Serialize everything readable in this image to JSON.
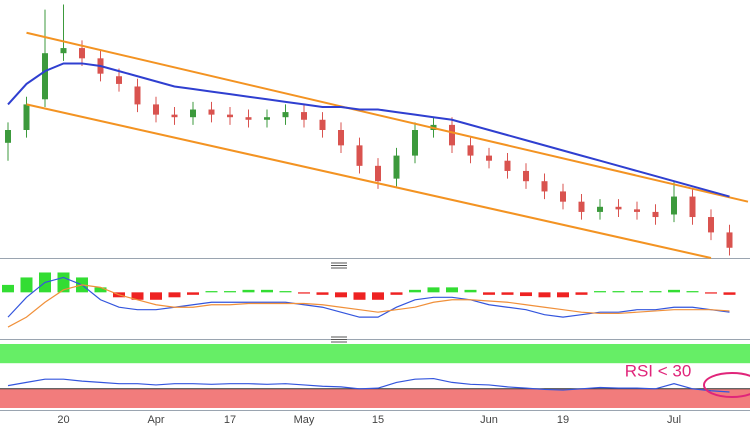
{
  "chart_data": [
    {
      "type": "candlestick",
      "categories": [
        null,
        null,
        null,
        "20",
        null,
        null,
        null,
        null,
        "Apr",
        null,
        null,
        null,
        "17",
        null,
        null,
        null,
        "May",
        null,
        null,
        null,
        "15",
        null,
        null,
        null,
        null,
        null,
        "Jun",
        null,
        null,
        null,
        "19",
        null,
        null,
        null,
        null,
        null,
        "Jul",
        null,
        null,
        null
      ],
      "open": [
        45,
        50,
        62,
        80,
        82,
        78,
        71,
        67,
        60,
        56,
        55,
        58,
        56,
        55,
        54,
        55,
        57,
        54,
        50,
        44,
        36,
        31,
        40,
        50,
        52,
        44,
        40,
        38,
        34,
        30,
        26,
        22,
        18,
        20,
        19,
        18,
        17,
        24,
        16,
        10
      ],
      "high": [
        53,
        63,
        97,
        99,
        85,
        81,
        74,
        70,
        63,
        59,
        61,
        61,
        59,
        58,
        58,
        60,
        60,
        57,
        53,
        47,
        39,
        43,
        53,
        55,
        55,
        47,
        43,
        41,
        37,
        33,
        29,
        25,
        23,
        23,
        22,
        21,
        30,
        27,
        19,
        13
      ],
      "low": [
        38,
        47,
        59,
        77,
        75,
        69,
        65,
        57,
        53,
        52,
        52,
        53,
        52,
        51,
        51,
        52,
        51,
        47,
        41,
        33,
        27,
        28,
        37,
        47,
        41,
        37,
        35,
        31,
        27,
        23,
        19,
        15,
        15,
        16,
        15,
        13,
        14,
        13,
        7,
        1
      ],
      "close": [
        50,
        60,
        80,
        82,
        78,
        72,
        68,
        60,
        56,
        55,
        58,
        56,
        55,
        54,
        55,
        57,
        54,
        50,
        44,
        36,
        30,
        40,
        50,
        52,
        44,
        40,
        38,
        34,
        30,
        26,
        22,
        18,
        20,
        19,
        18,
        16,
        24,
        16,
        10,
        4
      ],
      "up_color": "#3c9a3c",
      "down_color": "#d9534f",
      "ylim": [
        0,
        100
      ],
      "moving_average": {
        "color": "#2f3fd0",
        "values": [
          60,
          68,
          73,
          76,
          76,
          75,
          73,
          71,
          69,
          67,
          66,
          65,
          64,
          63,
          62,
          61,
          60,
          59,
          59,
          58,
          58,
          57,
          56,
          55,
          54,
          52,
          50,
          48,
          46,
          44,
          42,
          40,
          38,
          36,
          34,
          32,
          30,
          28,
          26,
          24
        ]
      },
      "channel": {
        "color": "#f39322",
        "upper": {
          "x": [
            1,
            40
          ],
          "values": [
            88,
            22
          ]
        },
        "lower": {
          "x": [
            1,
            38
          ],
          "values": [
            60,
            0
          ]
        }
      }
    },
    {
      "type": "macd",
      "ylim": [
        -18,
        9
      ],
      "histogram": {
        "up_color": "#33dd33",
        "down_color": "#ee2222",
        "values": [
          3,
          6,
          8,
          8,
          6,
          2,
          -2,
          -3,
          -3,
          -2,
          -1,
          0.5,
          0.5,
          1,
          1,
          0.5,
          -0.5,
          -1,
          -2,
          -3,
          -3,
          -1,
          1,
          2,
          2,
          1,
          -1,
          -1,
          -1.5,
          -2,
          -2,
          -1,
          0.5,
          0.5,
          0.5,
          0.5,
          1,
          0.5,
          -0.5,
          -1
        ]
      },
      "series": [
        {
          "color": "#3355dd",
          "values": [
            -10,
            -2,
            4,
            6,
            3,
            -3,
            -6,
            -7,
            -7,
            -6,
            -5,
            -4,
            -4,
            -4,
            -4,
            -4,
            -5,
            -6,
            -8,
            -10,
            -10,
            -6,
            -3,
            -2,
            -2,
            -3,
            -5,
            -6,
            -7,
            -9,
            -10,
            -9,
            -8,
            -8,
            -7,
            -7,
            -6,
            -6,
            -7,
            -8
          ]
        },
        {
          "color": "#f0903a",
          "values": [
            -14,
            -10,
            -4,
            1,
            3,
            2,
            -1,
            -3,
            -5,
            -6,
            -6,
            -5,
            -5,
            -4.5,
            -4.5,
            -4.5,
            -4.5,
            -5,
            -6,
            -7,
            -8,
            -7,
            -6,
            -4,
            -3,
            -3,
            -3.5,
            -4,
            -5,
            -6,
            -7,
            -8,
            -8.5,
            -8.5,
            -8,
            -7.5,
            -7,
            -7,
            -7,
            -7.5
          ]
        }
      ]
    },
    {
      "type": "rsi",
      "ylim": [
        0,
        100
      ],
      "levels": [
        30,
        70
      ],
      "band_colors": [
        "#f27c7c",
        "#66ee66"
      ],
      "series": {
        "color": "#3355dd",
        "values": [
          35,
          40,
          45,
          45,
          42,
          40,
          38,
          38,
          36,
          38,
          38,
          37,
          38,
          38,
          37,
          38,
          36,
          34,
          33,
          30,
          31,
          40,
          45,
          46,
          40,
          37,
          36,
          33,
          31,
          29,
          28,
          30,
          32,
          31,
          31,
          30,
          38,
          30,
          27,
          25
        ]
      },
      "annotation": "RSI < 30",
      "annotation_color": "#e0257a"
    }
  ]
}
